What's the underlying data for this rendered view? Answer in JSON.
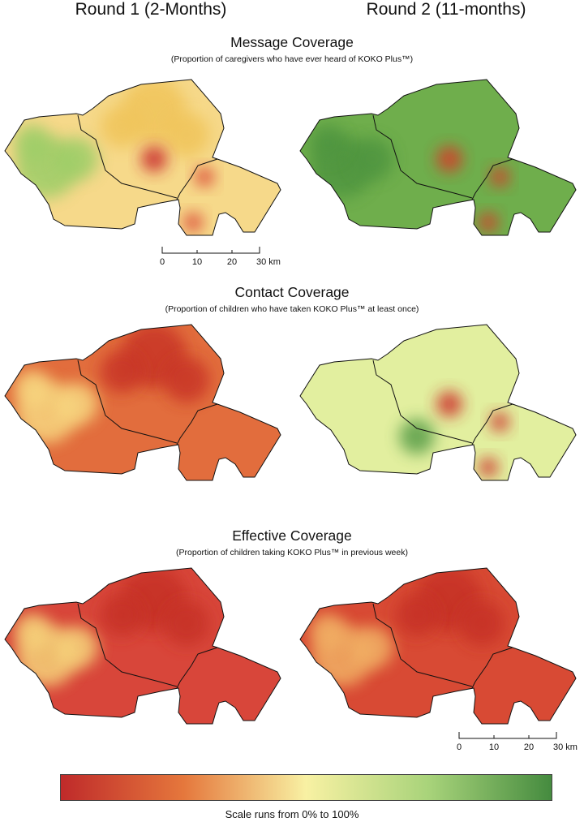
{
  "columns": {
    "round1": "Round 1 (2-Months)",
    "round2": "Round 2 (11-months)"
  },
  "sections": [
    {
      "title": "Message Coverage",
      "subtitle": "(Proportion of caregivers who have ever heard of KOKO Plus™)",
      "round1_base": "#f6d98a",
      "round2_base": "#6fae4c",
      "round1_spots": [
        {
          "color": "#9ccd68",
          "region": "west"
        },
        {
          "color": "#f0c45a",
          "region": "north"
        },
        {
          "color": "#c8262a",
          "region": "north-hotspot"
        },
        {
          "color": "#d94030",
          "region": "southeast-hotspot"
        }
      ],
      "round2_spots": [
        {
          "color": "#4f9540",
          "region": "west"
        },
        {
          "color": "#d63a2c",
          "region": "north-hotspot"
        },
        {
          "color": "#d63a2c",
          "region": "southeast-hotspot"
        }
      ]
    },
    {
      "title": "Contact Coverage",
      "subtitle": "(Proportion of children who have taken KOKO Plus™ at least once)",
      "round1_base": "#e26d3d",
      "round2_base": "#e2ef9f",
      "round1_spots": [
        {
          "color": "#f7d780",
          "region": "west"
        },
        {
          "color": "#c83428",
          "region": "north"
        }
      ],
      "round2_spots": [
        {
          "color": "#5a9e48",
          "region": "center"
        },
        {
          "color": "#cc2f2a",
          "region": "north-hotspot"
        },
        {
          "color": "#cc2f2a",
          "region": "southeast-hotspot"
        }
      ]
    },
    {
      "title": "Effective Coverage",
      "subtitle": "(Proportion of children taking KOKO Plus™ in previous week)",
      "round1_base": "#d8463a",
      "round2_base": "#d84a34",
      "round1_spots": [
        {
          "color": "#f5d37a",
          "region": "west"
        },
        {
          "color": "#c63127",
          "region": "north"
        }
      ],
      "round2_spots": [
        {
          "color": "#f1b065",
          "region": "west"
        },
        {
          "color": "#c63127",
          "region": "north"
        }
      ]
    }
  ],
  "scalebar": {
    "ticks": [
      "0",
      "10",
      "20",
      "30 km"
    ]
  },
  "legend": {
    "caption": "Scale runs from 0% to 100%",
    "colors": [
      "#bf2a2a",
      "#e5773c",
      "#f8f1a3",
      "#a8d37a",
      "#458b3f"
    ]
  }
}
